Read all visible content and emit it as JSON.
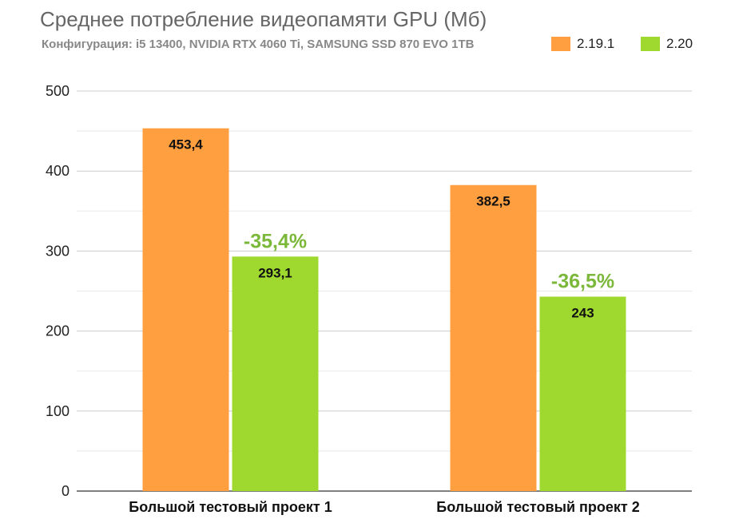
{
  "chart_data": {
    "type": "bar",
    "title": "Среднее потребление видеопамяти GPU (Мб)",
    "subtitle": "Конфигурация:  i5 13400, NVIDIA RTX 4060 Ti, SAMSUNG SSD 870 EVO 1TB",
    "categories": [
      "Большой тестовый проект 1",
      "Большой тестовый проект 2"
    ],
    "series": [
      {
        "name": "2.19.1",
        "values": [
          453.4,
          382.5
        ],
        "labels": [
          "453,4",
          "382,5"
        ],
        "color": "#FF9F40"
      },
      {
        "name": "2.20",
        "values": [
          293.1,
          243
        ],
        "labels": [
          "293,1",
          "243"
        ],
        "color": "#9FD930"
      }
    ],
    "annotations": [
      "-35,4%",
      "-36,5%"
    ],
    "annotation_color": "#7BB83A",
    "ylim": [
      0,
      500
    ],
    "yticks": [
      0,
      100,
      200,
      300,
      400,
      500
    ],
    "grid": true,
    "legend_position": "top-right",
    "xlabel": "",
    "ylabel": ""
  }
}
